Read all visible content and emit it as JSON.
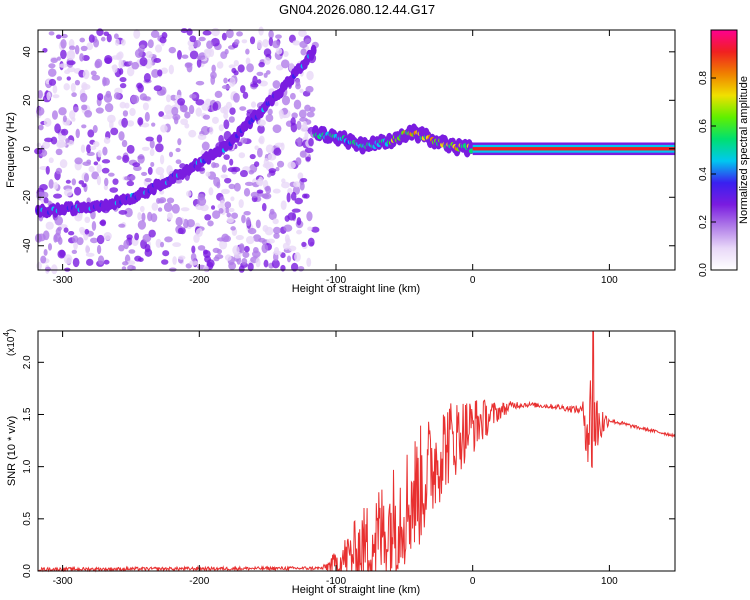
{
  "figure_title": "GN04.2026.080.12.44.G17",
  "chart_data": [
    {
      "type": "heatmap",
      "title": "GN04.2026.080.12.44.G17",
      "xlabel": "Height of straight line (km)",
      "ylabel": "Frequency (Hz)",
      "xlim": [
        -318,
        148
      ],
      "ylim": [
        -50,
        49
      ],
      "x_ticks": [
        -300,
        -200,
        -100,
        0,
        100
      ],
      "y_ticks": [
        -40,
        -20,
        0,
        20,
        40
      ],
      "colorbar": {
        "label": "Normalized spectral amplitude",
        "range": [
          0,
          1
        ],
        "ticks": [
          0.0,
          0.2,
          0.4,
          0.6,
          0.8
        ],
        "colors": [
          "#ffffff",
          "#e8d8f8",
          "#b07ce8",
          "#7a1ce0",
          "#3a20f0",
          "#00c8f0",
          "#00e070",
          "#60f000",
          "#f0e000",
          "#f08000",
          "#f02020",
          "#ff0090"
        ]
      },
      "series": [
        {
          "name": "chirp ridge (below -115 km)",
          "x": [
            -318,
            -300,
            -280,
            -260,
            -240,
            -220,
            -200,
            -180,
            -160,
            -140,
            -125,
            -115
          ],
          "y": [
            -26,
            -25,
            -24,
            -22,
            -18,
            -12,
            -6,
            1,
            13,
            24,
            34,
            41
          ]
        },
        {
          "name": "settled signal (above -115 km)",
          "x": [
            -115,
            -100,
            -80,
            -60,
            -45,
            -30,
            -15,
            0,
            50,
            100,
            148
          ],
          "y": [
            6,
            5,
            1,
            3,
            7,
            4,
            1,
            0,
            0,
            0,
            0
          ]
        },
        {
          "name": "noise patches",
          "x_range": [
            -318,
            -115
          ],
          "y_range": [
            -50,
            49
          ]
        }
      ]
    },
    {
      "type": "line",
      "xlabel": "Height of straight line (km)",
      "ylabel": "SNR (10 * v/v)",
      "scale_label": "(x10",
      "scale_exponent": "4",
      "scale_suffix": ")",
      "xlim": [
        -318,
        148
      ],
      "ylim": [
        0,
        2.3
      ],
      "x_ticks": [
        -300,
        -200,
        -100,
        0,
        100
      ],
      "y_ticks": [
        0.0,
        0.5,
        1.0,
        1.5,
        2.0
      ],
      "series": [
        {
          "name": "SNR",
          "color": "#e83030",
          "envelope_x": [
            -318,
            -110,
            -100,
            -80,
            -60,
            -40,
            -20,
            0,
            20,
            30,
            40,
            60,
            80,
            85,
            88,
            92,
            100,
            120,
            148
          ],
          "envelope_y": [
            0.02,
            0.03,
            0.1,
            0.3,
            0.55,
            0.9,
            1.3,
            1.45,
            1.55,
            1.6,
            1.6,
            1.58,
            1.55,
            1.5,
            1.55,
            1.45,
            1.45,
            1.38,
            1.3
          ],
          "noise_amplitude": [
            0.02,
            0.02,
            0.15,
            0.5,
            0.7,
            0.75,
            0.55,
            0.35,
            0.1,
            0.05,
            0.03,
            0.03,
            0.05,
            0.7,
            0.75,
            0.3,
            0.03,
            0.02,
            0.02
          ],
          "peak_x": 88,
          "peak_y": 2.3
        }
      ]
    }
  ]
}
